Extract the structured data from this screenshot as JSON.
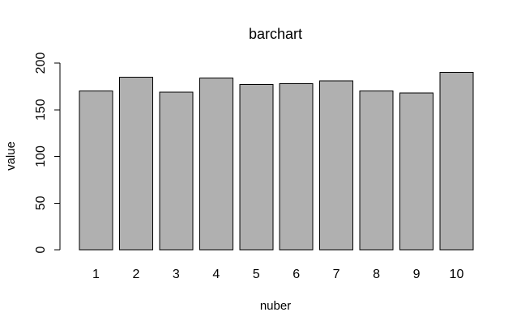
{
  "chart_data": {
    "type": "bar",
    "title": "barchart",
    "xlabel": "nuber",
    "ylabel": "value",
    "categories": [
      "1",
      "2",
      "3",
      "4",
      "5",
      "6",
      "7",
      "8",
      "9",
      "10"
    ],
    "values": [
      170,
      185,
      169,
      184,
      177,
      178,
      181,
      170,
      168,
      190
    ],
    "ylim": [
      0,
      200
    ],
    "yticks": [
      0,
      50,
      100,
      150,
      200
    ],
    "bar_color": "#b0b0b0",
    "border_color": "#000000",
    "grid": false,
    "legend": "none"
  }
}
